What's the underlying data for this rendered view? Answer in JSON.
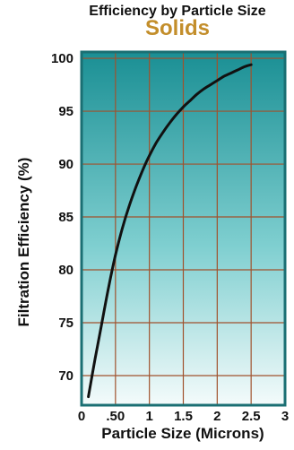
{
  "chart_data": {
    "type": "line",
    "title": "Efficiency by Particle Size",
    "subtitle": "Solids",
    "xlabel": "Particle Size (Microns)",
    "ylabel": "Filtration Efficiency (%)",
    "xlim": [
      0,
      3
    ],
    "ylim": [
      67.2,
      100.6
    ],
    "x_ticks": [
      0,
      0.5,
      1,
      1.5,
      2,
      2.5,
      3
    ],
    "x_tick_labels": [
      "0",
      ".50",
      "1",
      "1.5",
      "2",
      "2.5",
      "3"
    ],
    "y_ticks": [
      70,
      75,
      80,
      85,
      90,
      95,
      100
    ],
    "y_tick_labels": [
      "70",
      "75",
      "80",
      "85",
      "90",
      "95",
      "100"
    ],
    "grid": true,
    "series": [
      {
        "x": [
          0.1,
          0.2,
          0.3,
          0.4,
          0.5,
          0.6,
          0.7,
          0.8,
          0.9,
          1.0,
          1.1,
          1.2,
          1.3,
          1.4,
          1.5,
          1.6,
          1.7,
          1.8,
          1.9,
          2.0,
          2.1,
          2.2,
          2.3,
          2.4,
          2.5
        ],
        "y": [
          68.0,
          71.6,
          75.0,
          78.4,
          81.4,
          83.9,
          86.0,
          87.8,
          89.4,
          90.8,
          92.0,
          93.0,
          93.9,
          94.7,
          95.4,
          96.0,
          96.6,
          97.1,
          97.5,
          97.9,
          98.3,
          98.6,
          98.9,
          99.2,
          99.4
        ]
      }
    ],
    "colors": {
      "line": "#111111",
      "grid": "#a0522d",
      "plot_top": "#1a8f94",
      "plot_bottom": "#f4fbfb",
      "border": "#1a6f73",
      "subtitle": "#c38e2b"
    }
  }
}
